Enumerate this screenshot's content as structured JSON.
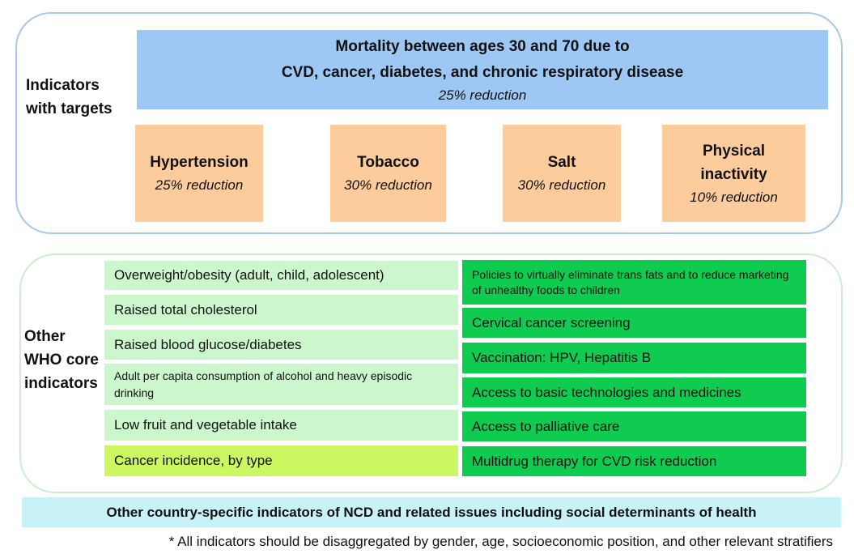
{
  "targets_section": {
    "label": "Indicators with targets",
    "mortality": {
      "line1": "Mortality between ages 30 and 70 due to",
      "line2": "CVD, cancer, diabetes, and chronic respiratory disease",
      "reduction": "25% reduction"
    },
    "targets": [
      {
        "name": "Hypertension",
        "reduction": "25% reduction"
      },
      {
        "name": "Tobacco",
        "reduction": "30% reduction"
      },
      {
        "name": "Salt",
        "reduction": "30% reduction"
      },
      {
        "name": "Physical inactivity",
        "reduction": "10% reduction"
      }
    ]
  },
  "core_section": {
    "label": "Other WHO core indicators",
    "left_indicators": [
      "Overweight/obesity (adult, child, adolescent)",
      "Raised total cholesterol",
      "Raised blood glucose/diabetes",
      "Adult per capita consumption of alcohol and heavy episodic drinking",
      "Low fruit and vegetable intake",
      "Cancer incidence, by type"
    ],
    "right_indicators": [
      "Policies to virtually eliminate trans fats and to reduce marketing of unhealthy foods to children",
      "Cervical cancer screening",
      "Vaccination: HPV, Hepatitis B",
      "Access to basic technologies and medicines",
      "Access to palliative care",
      "Multidrug therapy for CVD risk reduction"
    ]
  },
  "country_specific": "Other country-specific indicators of NCD and related issues including social determinants of health",
  "footnote": "* All indicators should be disaggregated by gender, age, socioeconomic position, and other relevant stratifiers",
  "colors": {
    "mortality_fill": "#9dc8f5",
    "target_fill": "#fccc9c",
    "left_indicator_fill": "#ccf7cc",
    "highlight_indicator_fill": "#cdf760",
    "right_indicator_fill": "#0fcc50",
    "country_bar_fill": "#c8f2f8"
  }
}
